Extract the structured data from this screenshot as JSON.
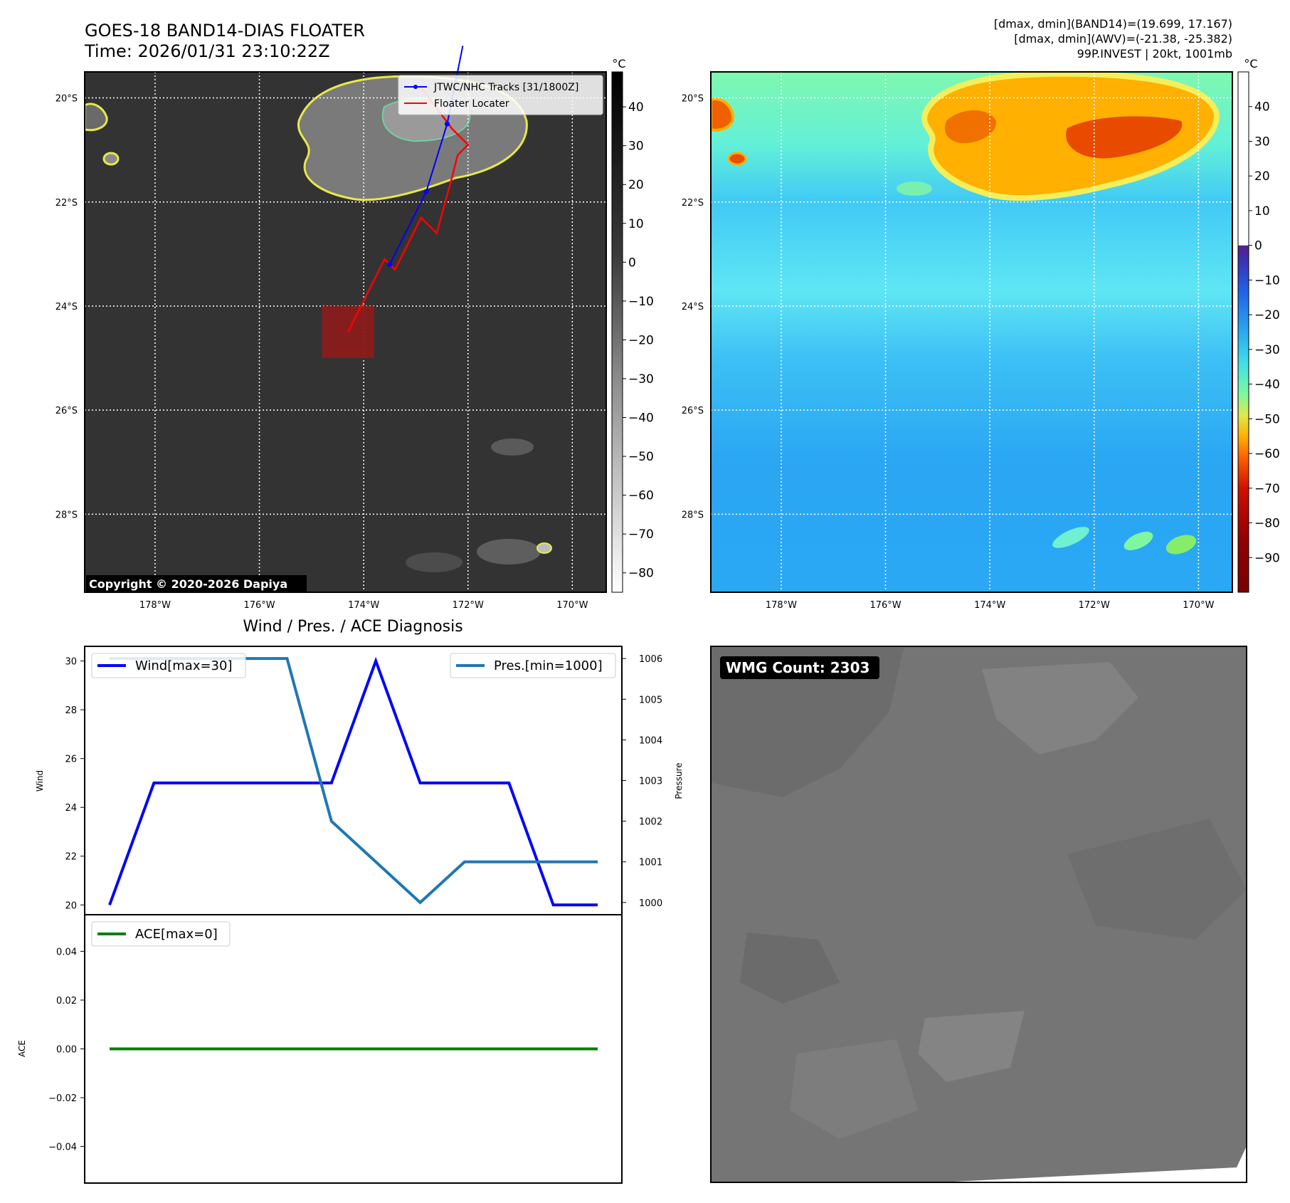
{
  "header": {
    "title": "GOES-18 BAND14-DIAS FLOATER",
    "time": "Time: 2026/01/31 23:10:22Z",
    "info_line1": "[dmax, dmin](BAND14)=(19.699, 17.167)",
    "info_line2": "[dmax, dmin](AWV)=(-21.38, -25.382)",
    "info_line3": "99P.INVEST | 20kt, 1001mb"
  },
  "copyright": "Copyright © 2020-2026 Dapiya",
  "map_axes": {
    "lon_ticks": [
      "178°W",
      "176°W",
      "174°W",
      "172°W",
      "170°W"
    ],
    "lon_values": [
      -178,
      -176,
      -174,
      -172,
      -170
    ],
    "lat_ticks": [
      "20°S",
      "22°S",
      "24°S",
      "26°S",
      "28°S"
    ],
    "lat_values": [
      -20,
      -22,
      -24,
      -26,
      -28
    ],
    "lon_range": [
      -179.35,
      -169.35
    ],
    "lat_range": [
      -19.5,
      -29.5
    ]
  },
  "ir_panel": {
    "colorbar_unit": "°C",
    "colorbar_ticks": [
      "40",
      "30",
      "20",
      "10",
      "0",
      "−10",
      "−20",
      "−30",
      "−40",
      "−50",
      "−60",
      "−70",
      "−80"
    ],
    "colorbar_values": [
      40,
      30,
      20,
      10,
      0,
      -10,
      -20,
      -30,
      -40,
      -50,
      -60,
      -70,
      -80
    ],
    "colorbar_range": [
      49,
      -85
    ],
    "legend": {
      "track_label": "JTWC/NHC Tracks [31/1800Z]",
      "locater_label": "Floater Locater",
      "track_color": "#0000ff",
      "locater_color": "#ff0000"
    },
    "track": [
      {
        "lon": -172.1,
        "lat": -19.0
      },
      {
        "lon": -172.4,
        "lat": -20.5
      },
      {
        "lon": -172.8,
        "lat": -21.8
      },
      {
        "lon": -173.5,
        "lat": -23.2
      }
    ],
    "locater": [
      {
        "lon": -172.9,
        "lat": -19.8
      },
      {
        "lon": -172.3,
        "lat": -20.6
      },
      {
        "lon": -172.0,
        "lat": -20.9
      },
      {
        "lon": -172.2,
        "lat": -21.1
      },
      {
        "lon": -172.3,
        "lat": -21.5
      },
      {
        "lon": -172.6,
        "lat": -22.6
      },
      {
        "lon": -172.9,
        "lat": -22.3
      },
      {
        "lon": -173.4,
        "lat": -23.3
      },
      {
        "lon": -173.6,
        "lat": -23.1
      },
      {
        "lon": -174.3,
        "lat": -24.5
      }
    ],
    "floater_box": {
      "lon_min": -174.8,
      "lon_max": -173.8,
      "lat_min": -25.0,
      "lat_max": -24.0
    }
  },
  "awv_panel": {
    "colorbar_unit": "°C",
    "colorbar_ticks": [
      "40",
      "30",
      "20",
      "10",
      "0",
      "−10",
      "−20",
      "−30",
      "−40",
      "−50",
      "−60",
      "−70",
      "−80",
      "−90"
    ],
    "colorbar_values": [
      40,
      30,
      20,
      10,
      0,
      -10,
      -20,
      -30,
      -40,
      -50,
      -60,
      -70,
      -80,
      -90
    ],
    "colorbar_range": [
      50,
      -100
    ]
  },
  "wmg_panel": {
    "badge": "WMG Count: 2303"
  },
  "chart_data": [
    {
      "type": "line",
      "title": "Wind / Pres. / ACE Diagnosis",
      "x": [
        0,
        1,
        2,
        3,
        4,
        5,
        6,
        7,
        8,
        9,
        10,
        11
      ],
      "series": [
        {
          "name": "Wind[max=30]",
          "axis": "left",
          "color": "#0000ff",
          "values": [
            20,
            25,
            25,
            25,
            25,
            25,
            30,
            25,
            25,
            25,
            20,
            20
          ]
        },
        {
          "name": "Pres.[min=1000]",
          "axis": "right",
          "color": "#1f77b4",
          "values": [
            1006,
            1006,
            1006,
            1006,
            1006,
            1002,
            1001,
            1000,
            1001,
            1001,
            1001,
            1001
          ]
        }
      ],
      "ylabel": "Wind",
      "ylabel_right": "Pressure",
      "ylim": [
        19.6,
        30.6
      ],
      "ylim_right": [
        999.7,
        1006.3
      ],
      "yticks": [
        20,
        22,
        24,
        26,
        28,
        30
      ],
      "yticks_right": [
        1000,
        1001,
        1002,
        1003,
        1004,
        1005,
        1006
      ],
      "legend": [
        "upper-left",
        "upper-right"
      ]
    },
    {
      "type": "line",
      "x": [
        0,
        1,
        2,
        3,
        4,
        5,
        6,
        7,
        8,
        9,
        10,
        11
      ],
      "series": [
        {
          "name": "ACE[max=0]",
          "color": "#008000",
          "values": [
            0,
            0,
            0,
            0,
            0,
            0,
            0,
            0,
            0,
            0,
            0,
            0
          ]
        }
      ],
      "ylabel": "ACE",
      "ylim": [
        -0.055,
        0.055
      ],
      "yticks": [
        0.04,
        0.02,
        0.0,
        -0.02,
        -0.04
      ],
      "ytick_labels": [
        "0.04",
        "0.02",
        "0.00",
        "−0.02",
        "−0.04"
      ],
      "legend": "upper-left"
    }
  ]
}
